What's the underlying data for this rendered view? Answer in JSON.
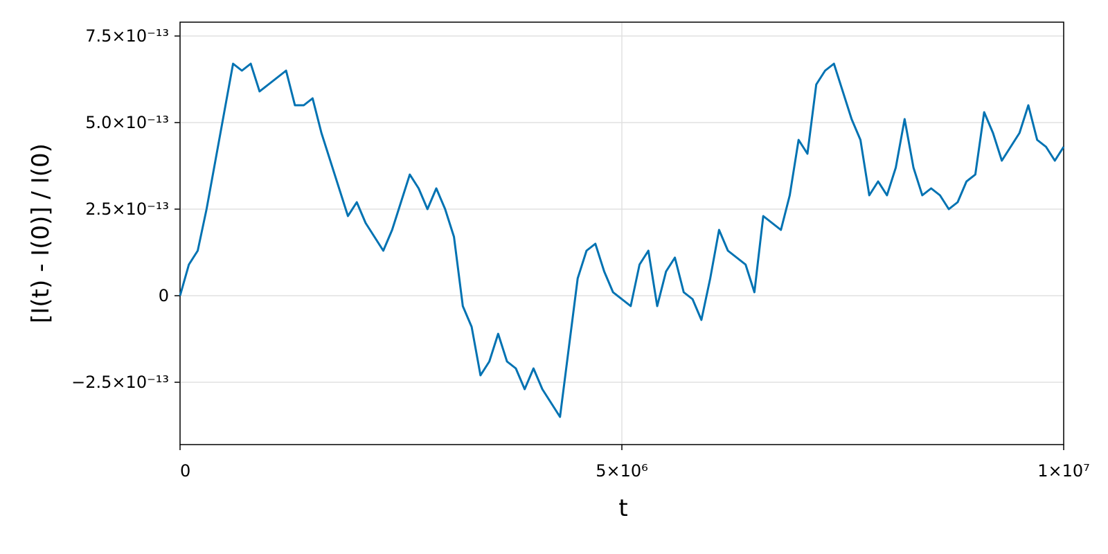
{
  "chart_data": {
    "type": "line",
    "xlabel": "t",
    "ylabel": "[I(t) - I(0)] / I(0)",
    "xlim": [
      0,
      10000000
    ],
    "ylim": [
      -4.3e-13,
      7.9e-13
    ],
    "xticks": [
      0,
      {
        "value": 5000000,
        "label": "5×10⁶"
      },
      {
        "value": 10000000,
        "label": "1×10⁷"
      }
    ],
    "yticks": [
      {
        "value": -2.5e-13,
        "label": "−2.5×10⁻¹³"
      },
      0,
      {
        "value": 2.5e-13,
        "label": "2.5×10⁻¹³"
      },
      {
        "value": 5e-13,
        "label": "5.0×10⁻¹³"
      },
      {
        "value": 7.5e-13,
        "label": "7.5×10⁻¹³"
      }
    ],
    "grid": true,
    "x": [
      0,
      100000,
      200000,
      300000,
      400000,
      500000,
      600000,
      700000,
      800000,
      900000,
      1000000,
      1100000,
      1200000,
      1300000,
      1400000,
      1500000,
      1600000,
      1700000,
      1800000,
      1900000,
      2000000,
      2100000,
      2200000,
      2300000,
      2400000,
      2500000,
      2600000,
      2700000,
      2800000,
      2900000,
      3000000,
      3100000,
      3200000,
      3300000,
      3400000,
      3500000,
      3600000,
      3700000,
      3800000,
      3900000,
      4000000,
      4100000,
      4200000,
      4300000,
      4400000,
      4500000,
      4600000,
      4700000,
      4800000,
      4900000,
      5000000,
      5100000,
      5200000,
      5300000,
      5400000,
      5500000,
      5600000,
      5700000,
      5800000,
      5900000,
      6000000,
      6100000,
      6200000,
      6300000,
      6400000,
      6500000,
      6600000,
      6700000,
      6800000,
      6900000,
      7000000,
      7100000,
      7200000,
      7300000,
      7400000,
      7500000,
      7600000,
      7700000,
      7800000,
      7900000,
      8000000,
      8100000,
      8200000,
      8300000,
      8400000,
      8500000,
      8600000,
      8700000,
      8800000,
      8900000,
      9000000,
      9100000,
      9200000,
      9300000,
      9400000,
      9500000,
      9600000,
      9700000,
      9800000,
      9900000,
      10000000
    ],
    "series": [
      {
        "color": "#0072b2",
        "values": [
          0,
          9e-14,
          1.3e-13,
          2.5e-13,
          3.9e-13,
          5.3e-13,
          6.7e-13,
          6.5e-13,
          6.7e-13,
          5.9e-13,
          6.1e-13,
          6.3e-13,
          6.5e-13,
          5.5e-13,
          5.5e-13,
          5.7e-13,
          4.7e-13,
          3.9e-13,
          3.1e-13,
          2.3e-13,
          2.7e-13,
          2.1e-13,
          1.7e-13,
          1.3e-13,
          1.9e-13,
          2.7e-13,
          3.5e-13,
          3.1e-13,
          2.5e-13,
          3.1e-13,
          2.5e-13,
          1.7e-13,
          -3e-14,
          -9e-14,
          -2.3e-13,
          -1.9e-13,
          -1.1e-13,
          -1.9e-13,
          -2.1e-13,
          -2.7e-13,
          -2.1e-13,
          -2.7e-13,
          -3.1e-13,
          -3.5e-13,
          -1.5e-13,
          5e-14,
          1.3e-13,
          1.5e-13,
          7e-14,
          1e-14,
          -1e-14,
          -3e-14,
          9e-14,
          1.3e-13,
          -3e-14,
          7e-14,
          1.1e-13,
          1e-14,
          -1e-14,
          -7e-14,
          5e-14,
          1.9e-13,
          1.3e-13,
          1.1e-13,
          9e-14,
          1e-14,
          2.3e-13,
          2.1e-13,
          1.9e-13,
          2.9e-13,
          4.5e-13,
          4.1e-13,
          6.1e-13,
          6.5e-13,
          6.7e-13,
          5.9e-13,
          5.1e-13,
          4.5e-13,
          2.9e-13,
          3.3e-13,
          2.9e-13,
          3.7e-13,
          5.1e-13,
          3.7e-13,
          2.9e-13,
          3.1e-13,
          2.9e-13,
          2.5e-13,
          2.7e-13,
          3.3e-13,
          3.5e-13,
          5.3e-13,
          4.7e-13,
          3.9e-13,
          4.3e-13,
          4.7e-13,
          5.5e-13,
          4.5e-13,
          4.3e-13,
          3.9e-13,
          4.3e-13
        ]
      }
    ]
  }
}
